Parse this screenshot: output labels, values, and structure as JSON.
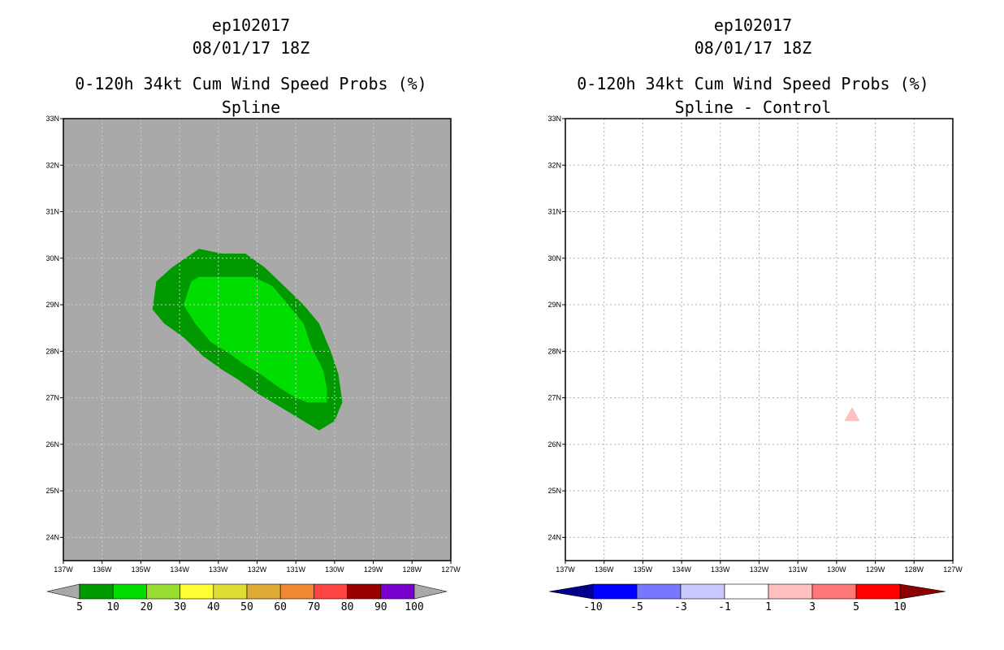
{
  "chart_data": [
    {
      "type": "heatmap",
      "title_line1": "ep102017",
      "title_line2": "08/01/17 18Z",
      "title_line3": "0-120h 34kt Cum Wind Speed Probs (%)",
      "title_line4": "Spline",
      "xlim": [
        -137,
        -127
      ],
      "ylim": [
        23.5,
        33
      ],
      "x_ticks": [
        "137W",
        "136W",
        "135W",
        "134W",
        "133W",
        "132W",
        "131W",
        "130W",
        "129W",
        "128W",
        "127W"
      ],
      "y_ticks": [
        "24N",
        "25N",
        "26N",
        "27N",
        "28N",
        "29N",
        "30N",
        "31N",
        "32N",
        "33N"
      ],
      "background_color": "#a9a9a9",
      "grid": true,
      "contours": [
        {
          "level": "5-10",
          "color": "#009900",
          "points": [
            [
              -134.7,
              28.9
            ],
            [
              -134.6,
              29.5
            ],
            [
              -134.2,
              29.8
            ],
            [
              -133.5,
              30.2
            ],
            [
              -132.9,
              30.1
            ],
            [
              -132.3,
              30.1
            ],
            [
              -131.8,
              29.8
            ],
            [
              -131.3,
              29.4
            ],
            [
              -130.8,
              29.0
            ],
            [
              -130.4,
              28.6
            ],
            [
              -130.1,
              28.0
            ],
            [
              -129.9,
              27.5
            ],
            [
              -129.8,
              26.9
            ],
            [
              -130.0,
              26.5
            ],
            [
              -130.4,
              26.3
            ],
            [
              -130.8,
              26.5
            ],
            [
              -131.2,
              26.7
            ],
            [
              -131.6,
              26.9
            ],
            [
              -132.0,
              27.1
            ],
            [
              -132.5,
              27.4
            ],
            [
              -132.9,
              27.6
            ],
            [
              -133.4,
              27.9
            ],
            [
              -133.9,
              28.3
            ],
            [
              -134.4,
              28.6
            ]
          ]
        },
        {
          "level": "10-20",
          "color": "#00dd00",
          "points": [
            [
              -133.9,
              29.0
            ],
            [
              -133.7,
              29.5
            ],
            [
              -133.5,
              29.6
            ],
            [
              -132.6,
              29.6
            ],
            [
              -132.1,
              29.6
            ],
            [
              -131.6,
              29.4
            ],
            [
              -131.2,
              29.0
            ],
            [
              -130.8,
              28.6
            ],
            [
              -130.6,
              28.1
            ],
            [
              -130.3,
              27.6
            ],
            [
              -130.2,
              27.2
            ],
            [
              -130.2,
              26.9
            ],
            [
              -130.7,
              26.9
            ],
            [
              -131.0,
              27.0
            ],
            [
              -131.4,
              27.2
            ],
            [
              -131.9,
              27.5
            ],
            [
              -132.3,
              27.7
            ],
            [
              -132.8,
              28.0
            ],
            [
              -133.2,
              28.2
            ],
            [
              -133.6,
              28.6
            ]
          ]
        }
      ],
      "colorbar": {
        "labels": [
          "5",
          "10",
          "20",
          "30",
          "40",
          "50",
          "60",
          "70",
          "80",
          "90",
          "100"
        ],
        "colors": [
          "#009900",
          "#00dd00",
          "#99dd33",
          "#ffff33",
          "#dddd33",
          "#ddaa33",
          "#ee8833",
          "#ff4444",
          "#990000",
          "#7700cc"
        ],
        "end_color": "#a9a9a9"
      }
    },
    {
      "type": "heatmap",
      "title_line1": "ep102017",
      "title_line2": "08/01/17 18Z",
      "title_line3": "0-120h 34kt Cum Wind Speed Probs (%)",
      "title_line4": "Spline - Control",
      "xlim": [
        -137,
        -127
      ],
      "ylim": [
        23.5,
        33
      ],
      "x_ticks": [
        "137W",
        "136W",
        "135W",
        "134W",
        "133W",
        "132W",
        "131W",
        "130W",
        "129W",
        "128W",
        "127W"
      ],
      "y_ticks": [
        "24N",
        "25N",
        "26N",
        "27N",
        "28N",
        "29N",
        "30N",
        "31N",
        "32N",
        "33N"
      ],
      "background_color": "#ffffff",
      "grid": true,
      "contours": [
        {
          "level": "1-3",
          "color": "#ffc0c0",
          "points": [
            [
              -129.6,
              26.8
            ],
            [
              -129.4,
              26.5
            ],
            [
              -129.8,
              26.5
            ],
            [
              -129.6,
              26.8
            ],
            [
              -129.9,
              26.6
            ]
          ]
        }
      ],
      "colorbar": {
        "labels": [
          "-10",
          "-5",
          "-3",
          "-1",
          "1",
          "3",
          "5",
          "10"
        ],
        "colors": [
          "#0000ff",
          "#7777ff",
          "#c8c8ff",
          "#ffffff",
          "#ffc0c0",
          "#ff7777",
          "#ff0000"
        ],
        "low_color": "#00008b",
        "high_color": "#8b0000"
      }
    }
  ]
}
